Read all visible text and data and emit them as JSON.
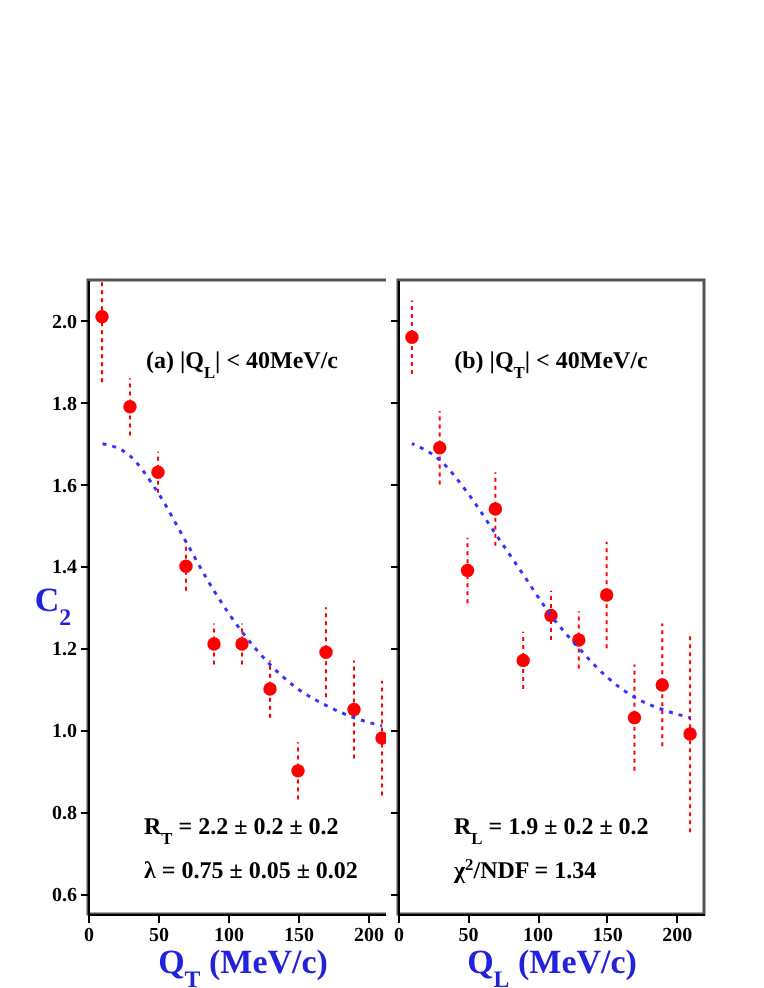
{
  "chart_data": [
    {
      "type": "scatter",
      "x": [
        10,
        30,
        50,
        70,
        90,
        110,
        130,
        150,
        170,
        190,
        210
      ],
      "xlabel": "Q$_{T}$ (MeV/c)",
      "ylabel": "C$_{2}$",
      "xlim": [
        0,
        220
      ],
      "ylim": [
        0.55,
        2.1
      ],
      "xticks": [
        0,
        50,
        100,
        150,
        200
      ],
      "yticks": [
        0.6,
        0.8,
        {
          "value": 1,
          "label": "1.0"
        },
        1.2,
        1.4,
        1.6,
        1.8,
        {
          "value": 2,
          "label": "2.0"
        }
      ],
      "annotations": [
        "(a) |Q$_{L}$| < 40MeV/c",
        "R$_{T}$ = 2.2 ± 0.2 ± 0.2",
        "λ = 0.75 ± 0.05 ± 0.02"
      ],
      "series": [
        {
          "color": "#ff0000",
          "marker": "circle",
          "values": [
            2.01,
            1.79,
            1.63,
            1.4,
            1.21,
            1.21,
            1.1,
            0.9,
            1.19,
            1.05,
            0.98
          ],
          "errors": [
            [
              1.85,
              2.1
            ],
            0.07,
            0.05,
            0.06,
            0.05,
            0.05,
            0.07,
            0.07,
            0.11,
            0.12,
            0.14
          ]
        },
        {
          "type": "line",
          "color": "#3333ff",
          "line_style": "dotted",
          "x": [
            10,
            30,
            50,
            70,
            90,
            110,
            130,
            150,
            170,
            190,
            210
          ],
          "values": [
            1.7,
            1.67,
            1.58,
            1.46,
            1.34,
            1.24,
            1.16,
            1.1,
            1.06,
            1.03,
            1.01
          ]
        }
      ]
    },
    {
      "type": "scatter",
      "x": [
        10,
        30,
        50,
        70,
        90,
        110,
        130,
        150,
        170,
        190,
        210
      ],
      "xlabel": "Q$_{L}$ (MeV/c)",
      "xlim": [
        0,
        220
      ],
      "ylim": [
        0.55,
        2.1
      ],
      "xticks": [
        0,
        50,
        100,
        150,
        200
      ],
      "yticks": [
        0.6,
        0.8,
        1.0,
        1.2,
        1.4,
        1.6,
        1.8,
        2.0
      ],
      "tick_labels": "x",
      "annotations": [
        "(b) |Q$_{T}$| < 40MeV/c",
        "R$_{L}$ = 1.9 ± 0.2 ± 0.2",
        "χ$^{2}$/NDF = 1.34"
      ],
      "series": [
        {
          "color": "#ff0000",
          "marker": "circle",
          "values": [
            1.96,
            1.69,
            1.39,
            1.54,
            1.17,
            1.28,
            1.22,
            1.33,
            1.03,
            1.11,
            0.99
          ],
          "errors": [
            0.09,
            0.09,
            0.08,
            0.09,
            0.07,
            0.06,
            0.07,
            0.13,
            0.13,
            0.15,
            0.24
          ]
        },
        {
          "type": "line",
          "color": "#3333ff",
          "line_style": "dotted",
          "x": [
            10,
            30,
            50,
            70,
            90,
            110,
            130,
            150,
            170,
            190,
            210
          ],
          "values": [
            1.7,
            1.66,
            1.58,
            1.48,
            1.38,
            1.28,
            1.2,
            1.13,
            1.08,
            1.05,
            1.03
          ]
        }
      ]
    }
  ]
}
